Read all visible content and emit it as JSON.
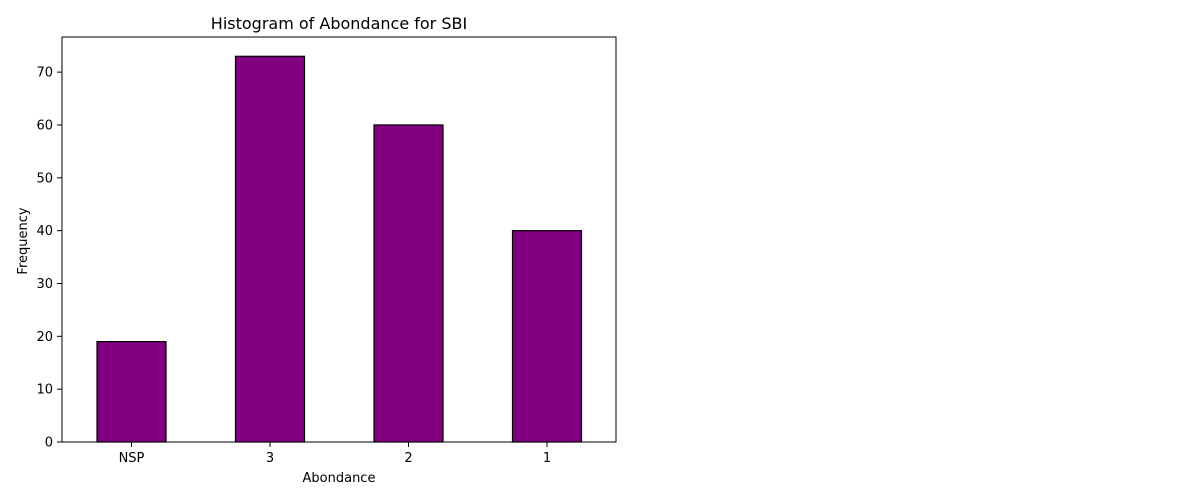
{
  "chart_data": {
    "type": "bar",
    "title": "Histogram of Abondance for SBI",
    "xlabel": "Abondance",
    "ylabel": "Frequency",
    "categories": [
      "NSP",
      "3",
      "2",
      "1"
    ],
    "values": [
      19,
      73,
      60,
      40
    ],
    "ylim": [
      0,
      76.65
    ],
    "yticks": [
      "0",
      "10",
      "20",
      "30",
      "40",
      "50",
      "60",
      "70"
    ],
    "bar_color": "#800080",
    "edge_color": "#000000",
    "grid": false,
    "legend": "none"
  }
}
